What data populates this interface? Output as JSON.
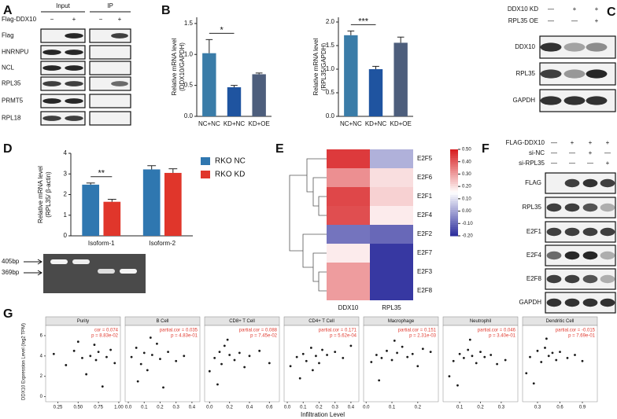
{
  "figure": {
    "panel_labels": [
      "A",
      "B",
      "C",
      "D",
      "E",
      "F",
      "G"
    ],
    "blot_a": {
      "headers": [
        "Input",
        "IP"
      ],
      "condition": "Flag-DDX10",
      "signs": [
        "−",
        "+",
        "−",
        "+"
      ],
      "rows": [
        "Flag",
        "HNRNPU",
        "NCL",
        "RPL35",
        "PRMT5",
        "RPL18"
      ]
    },
    "blot_c": {
      "conditions": [
        {
          "name": "DDX10 KD",
          "signs": [
            "—",
            "+",
            "+"
          ]
        },
        {
          "name": "RPL35 OE",
          "signs": [
            "—",
            "—",
            "+"
          ]
        }
      ],
      "rows": [
        "DDX10",
        "RPL35",
        "GAPDH"
      ]
    },
    "blot_f": {
      "conditions": [
        {
          "name": "FLAG-DDX10",
          "signs": [
            "—",
            "+",
            "+",
            "+"
          ]
        },
        {
          "name": "si-NC",
          "signs": [
            "—",
            "—",
            "+",
            "—"
          ]
        },
        {
          "name": "si-RPL35",
          "signs": [
            "—",
            "—",
            "—",
            "+"
          ]
        }
      ],
      "rows": [
        "FLAG",
        "RPL35",
        "E2F1",
        "E2F4",
        "E2F8",
        "GAPDH"
      ]
    },
    "gel": {
      "markers": [
        "405bp",
        "369bp"
      ]
    },
    "g_ylabel": "DDX10 Expression Level (log2 TPM)",
    "g_xlabel": "Infiltration Level"
  },
  "chart_data": [
    {
      "type": "bar",
      "ylabel": [
        "Relative mRNA level",
        "(DDX10/GAPDH)"
      ],
      "categories": [
        "NC+NC",
        "KD+NC",
        "KD+OE"
      ],
      "values": [
        1.02,
        0.47,
        0.68
      ],
      "errors": [
        0.22,
        0.03,
        0.02
      ],
      "colors": [
        "#3a7ca8",
        "#1f54a0",
        "#4d5e7c"
      ],
      "ylim": [
        0,
        1.6
      ],
      "yticks": [
        {
          "value": 0,
          "label": "0.0"
        },
        {
          "value": 0.5,
          "label": "0.5"
        },
        {
          "value": 1,
          "label": "1.0"
        },
        {
          "value": 1.5,
          "label": "1.5"
        }
      ],
      "significance": "*"
    },
    {
      "type": "bar",
      "ylabel": [
        "Relative mRNA level",
        "(RPL35/GAPDH)"
      ],
      "categories": [
        "NC+NC",
        "KD+NC",
        "KD+OE"
      ],
      "values": [
        1.72,
        1.0,
        1.56
      ],
      "errors": [
        0.09,
        0.06,
        0.12
      ],
      "colors": [
        "#3a7ca8",
        "#1f54a0",
        "#4d5e7c"
      ],
      "ylim": [
        0,
        2.1
      ],
      "yticks": [
        {
          "value": 0,
          "label": "0.0"
        },
        {
          "value": 0.5,
          "label": "0.5"
        },
        {
          "value": 1,
          "label": "1.0"
        },
        {
          "value": 1.5,
          "label": "1.5"
        },
        {
          "value": 2,
          "label": "2.0"
        }
      ],
      "significance": "***"
    },
    {
      "type": "bar",
      "ylabel": [
        "Relative mRNA level",
        "(RPL35/ β-actin)"
      ],
      "categories": [
        "Isoform-1",
        "Isoform-2"
      ],
      "series": [
        {
          "name": "RKO NC",
          "color": "#2f77b0",
          "values": [
            2.48,
            3.22
          ],
          "errors": [
            0.08,
            0.18
          ]
        },
        {
          "name": "RKO KD",
          "color": "#e0362b",
          "values": [
            1.65,
            3.05
          ],
          "errors": [
            0.12,
            0.2
          ]
        }
      ],
      "ylim": [
        0,
        4
      ],
      "yticks": [
        0,
        1,
        2,
        3,
        4
      ],
      "significance": "**"
    },
    {
      "type": "heatmap",
      "rows": [
        "E2F5",
        "E2F6",
        "E2F1",
        "E2F4",
        "E2F2",
        "E2F7",
        "E2F3",
        "E2F8"
      ],
      "columns": [
        "DDX10",
        "RPL35"
      ],
      "values": [
        [
          0.45,
          0.02
        ],
        [
          0.32,
          0.2
        ],
        [
          0.43,
          0.22
        ],
        [
          0.42,
          0.18
        ],
        [
          -0.08,
          -0.1
        ],
        [
          0.18,
          -0.18
        ],
        [
          0.3,
          -0.18
        ],
        [
          0.3,
          -0.18
        ]
      ],
      "clim": [
        -0.2,
        0.5
      ],
      "colormap": [
        "#2b2c9c",
        "#ffffff",
        "#d7191c"
      ],
      "colorbar_ticks": [
        {
          "value": 0.5,
          "label": "0.50"
        },
        {
          "value": 0.4,
          "label": "0.40"
        },
        {
          "value": 0.3,
          "label": "0.30"
        },
        {
          "value": 0.2,
          "label": "0.20"
        },
        {
          "value": 0.1,
          "label": "0.10"
        },
        {
          "value": 0,
          "label": "0.00"
        },
        {
          "value": -0.1,
          "label": "-0.10"
        },
        {
          "value": -0.2,
          "label": "-0.20"
        }
      ]
    },
    {
      "type": "scatter",
      "title": "Purity",
      "annotation": [
        "cor = 0.074",
        "p = 8.83e-02"
      ],
      "color": "#1a1a1a",
      "annotation_color": "#e03a2f",
      "x": [
        0.2,
        0.35,
        0.45,
        0.55,
        0.6,
        0.65,
        0.7,
        0.72,
        0.75,
        0.8,
        0.85,
        0.9,
        0.95,
        0.5
      ],
      "y": [
        4.2,
        3.1,
        4.5,
        3.8,
        2.2,
        4.0,
        5.1,
        3.6,
        4.4,
        1.0,
        3.9,
        4.6,
        3.3,
        5.4
      ],
      "xlim": [
        0.1,
        1.02
      ],
      "xticks": [
        {
          "value": 0.25,
          "label": "0.25"
        },
        {
          "value": 0.5,
          "label": "0.50"
        },
        {
          "value": 0.75,
          "label": "0.75"
        },
        {
          "value": 1,
          "label": "1.00"
        }
      ],
      "ylim": [
        -0.5,
        7
      ],
      "yticks": [
        0,
        2,
        4,
        6
      ]
    },
    {
      "type": "scatter",
      "title": "B Cell",
      "annotation": [
        "partial.cor = 0.035",
        "p = 4.83e-01"
      ],
      "color": "#1a1a1a",
      "annotation_color": "#e03a2f",
      "x": [
        0.02,
        0.05,
        0.08,
        0.1,
        0.12,
        0.15,
        0.18,
        0.2,
        0.25,
        0.3,
        0.35,
        0.06,
        0.14,
        0.22
      ],
      "y": [
        3.9,
        4.8,
        3.2,
        4.3,
        2.6,
        4.1,
        5.2,
        3.7,
        4.4,
        3.5,
        4.0,
        1.5,
        5.8,
        0.9
      ],
      "xlim": [
        -0.02,
        0.45
      ],
      "xticks": [
        {
          "value": 0,
          "label": "0.0"
        },
        0.1,
        0.2,
        0.3,
        0.4
      ],
      "ylim": [
        -0.5,
        7
      ]
    },
    {
      "type": "scatter",
      "title": "CD8+ T Cell",
      "annotation": [
        "partial.cor = 0.088",
        "p = 7.45e-02"
      ],
      "color": "#1a1a1a",
      "annotation_color": "#e03a2f",
      "x": [
        0,
        0.05,
        0.1,
        0.12,
        0.15,
        0.2,
        0.25,
        0.3,
        0.35,
        0.4,
        0.5,
        0.6,
        0.08,
        0.18
      ],
      "y": [
        2.5,
        3.8,
        4.4,
        3.2,
        5.0,
        4.1,
        3.6,
        4.3,
        2.9,
        4.0,
        4.5,
        3.3,
        1.2,
        5.6
      ],
      "xlim": [
        -0.05,
        0.7
      ],
      "xticks": [
        {
          "value": 0,
          "label": "0.0"
        },
        0.2,
        0.4,
        0.6
      ],
      "ylim": [
        -0.5,
        7
      ]
    },
    {
      "type": "scatter",
      "title": "CD4+ T Cell",
      "annotation": [
        "partial.cor = 0.171",
        "p = 5.62e-04"
      ],
      "color": "#1a1a1a",
      "annotation_color": "#e03a2f",
      "x": [
        0.02,
        0.06,
        0.1,
        0.12,
        0.15,
        0.18,
        0.2,
        0.22,
        0.25,
        0.3,
        0.35,
        0.4,
        0.08,
        0.16
      ],
      "y": [
        3.0,
        3.9,
        4.2,
        3.5,
        4.8,
        4.0,
        3.3,
        4.6,
        4.1,
        4.4,
        3.8,
        5.0,
        1.8,
        2.6
      ],
      "xlim": [
        -0.02,
        0.45
      ],
      "xticks": [
        {
          "value": 0,
          "label": "0.0"
        },
        0.1,
        0.2,
        0.3,
        0.4
      ],
      "ylim": [
        -0.5,
        7
      ]
    },
    {
      "type": "scatter",
      "title": "Macrophage",
      "annotation": [
        "partial.cor = 0.151",
        "p = 2.31e-03"
      ],
      "color": "#1a1a1a",
      "annotation_color": "#e03a2f",
      "x": [
        0.02,
        0.04,
        0.06,
        0.08,
        0.1,
        0.12,
        0.14,
        0.16,
        0.18,
        0.2,
        0.22,
        0.25,
        0.05,
        0.11
      ],
      "y": [
        3.4,
        4.1,
        3.8,
        4.5,
        3.6,
        4.3,
        4.9,
        3.9,
        4.2,
        3.0,
        4.7,
        4.4,
        1.6,
        5.5
      ],
      "xlim": [
        -0.01,
        0.28
      ],
      "xticks": [
        {
          "value": 0,
          "label": "0.0"
        },
        0.1,
        0.2
      ],
      "ylim": [
        -0.5,
        7
      ]
    },
    {
      "type": "scatter",
      "title": "Neutrophil",
      "annotation": [
        "partial.cor = 0.046",
        "p = 3.40e-01"
      ],
      "color": "#1a1a1a",
      "annotation_color": "#e03a2f",
      "x": [
        0.05,
        0.07,
        0.1,
        0.12,
        0.14,
        0.16,
        0.18,
        0.2,
        0.22,
        0.25,
        0.28,
        0.32,
        0.09,
        0.15
      ],
      "y": [
        2.0,
        3.5,
        4.2,
        3.8,
        4.6,
        4.0,
        3.3,
        4.4,
        3.9,
        4.1,
        3.2,
        3.6,
        1.1,
        5.6
      ],
      "xlim": [
        0.02,
        0.38
      ],
      "xticks": [
        0.1,
        0.2,
        0.3
      ],
      "ylim": [
        -0.5,
        7
      ]
    },
    {
      "type": "scatter",
      "title": "Dendritic Cell",
      "annotation": [
        "partial.cor = -0.015",
        "p = 7.69e-01"
      ],
      "color": "#1a1a1a",
      "annotation_color": "#e03a2f",
      "x": [
        0.15,
        0.2,
        0.3,
        0.35,
        0.4,
        0.45,
        0.5,
        0.55,
        0.6,
        0.7,
        0.8,
        0.9,
        0.25,
        0.42
      ],
      "y": [
        2.3,
        3.9,
        4.5,
        3.4,
        4.8,
        4.0,
        4.3,
        3.6,
        4.4,
        3.8,
        4.1,
        3.5,
        1.3,
        5.7
      ],
      "xlim": [
        0.1,
        1.1
      ],
      "xticks": [
        0.3,
        0.6,
        0.9
      ],
      "ylim": [
        -0.5,
        7
      ]
    }
  ]
}
